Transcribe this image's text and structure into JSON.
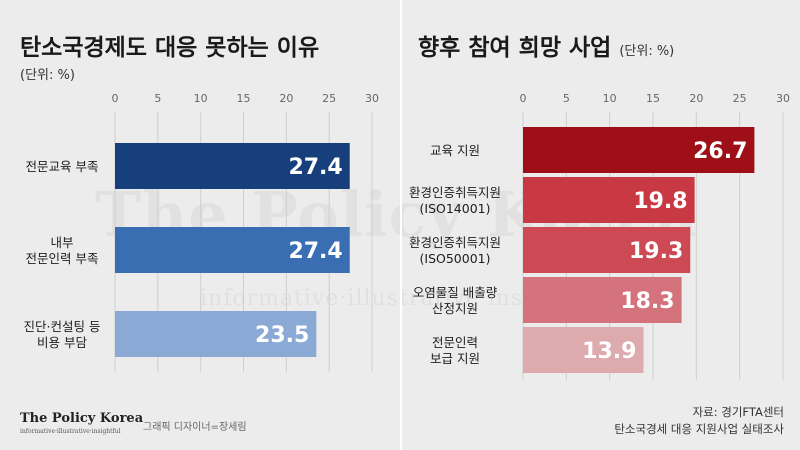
{
  "branding": {
    "watermark": "The Policy Korea",
    "watermark_sub": "informative·illustrative·insightful",
    "logo": "The Policy Korea",
    "logo_sub": "informative·illustrative·insightful",
    "designer": "그래픽 디자이너=장세림"
  },
  "source": {
    "line1": "자료: 경기FTA센터",
    "line2": "탄소국경세 대응 지원사업 실태조사"
  },
  "colors": {
    "background": "#ececec"
  },
  "chart_data": [
    {
      "type": "bar",
      "orientation": "horizontal",
      "title": "탄소국경제도 대응 못하는 이유",
      "unit": "(단위: %)",
      "categories": [
        [
          "전문교육 부족"
        ],
        [
          "내부",
          "전문인력 부족"
        ],
        [
          "진단·컨설팅 등",
          "비용 부담"
        ]
      ],
      "values": [
        27.4,
        27.4,
        23.5
      ],
      "value_labels": [
        "27.4",
        "27.4",
        "23.5"
      ],
      "colors": [
        "#163f7c",
        "#3a6eb3",
        "#8aaad5"
      ],
      "xlim": [
        0,
        30
      ],
      "ticks": [
        0,
        5,
        10,
        15,
        20,
        25,
        30
      ],
      "tick_labels": [
        "0",
        "5",
        "10",
        "15",
        "20",
        "25",
        "30"
      ],
      "grid": true
    },
    {
      "type": "bar",
      "orientation": "horizontal",
      "title": "향후 참여 희망 사업",
      "unit": "(단위: %)",
      "categories": [
        [
          "교육 지원"
        ],
        [
          "환경인증취득지원",
          "(ISO14001)"
        ],
        [
          "환경인증취득지원",
          "(ISO50001)"
        ],
        [
          "오염물질 배출량",
          "산정지원"
        ],
        [
          "전문인력",
          "보급 지원"
        ]
      ],
      "values": [
        26.7,
        19.8,
        19.3,
        18.3,
        13.9
      ],
      "value_labels": [
        "26.7",
        "19.8",
        "19.3",
        "18.3",
        "13.9"
      ],
      "colors": [
        "#9e0f17",
        "#c93944",
        "#cd4a55",
        "#d4737b",
        "#ddaaae"
      ],
      "xlim": [
        0,
        30
      ],
      "ticks": [
        0,
        5,
        10,
        15,
        20,
        25,
        30
      ],
      "tick_labels": [
        "0",
        "5",
        "10",
        "15",
        "20",
        "25",
        "30"
      ],
      "grid": true
    }
  ]
}
